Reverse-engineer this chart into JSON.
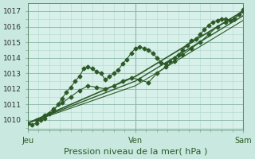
{
  "bg_color": "#c8e8e0",
  "plot_bg": "#d8f0ea",
  "grid_color": "#b0d8cc",
  "line_color": "#2d5a27",
  "title": "Pression niveau de la mer( hPa )",
  "xlabel_ticks": [
    "Jeu",
    "Ven",
    "Sam"
  ],
  "xlabel_tick_pos": [
    0.0,
    0.5,
    1.0
  ],
  "ylim": [
    1009.4,
    1017.5
  ],
  "yticks": [
    1010,
    1011,
    1012,
    1013,
    1014,
    1015,
    1016,
    1017
  ],
  "xlim": [
    0.0,
    1.0
  ],
  "vline_pos": [
    0.0,
    0.5,
    1.0
  ],
  "line1_x": [
    0.0,
    0.02,
    0.04,
    0.06,
    0.08,
    0.1,
    0.12,
    0.14,
    0.16,
    0.18,
    0.2,
    0.22,
    0.24,
    0.26,
    0.28,
    0.3,
    0.32,
    0.34,
    0.36,
    0.38,
    0.4,
    0.42,
    0.44,
    0.46,
    0.48,
    0.5,
    0.52,
    0.54,
    0.56,
    0.58,
    0.6,
    0.62,
    0.64,
    0.66,
    0.68,
    0.7,
    0.72,
    0.74,
    0.76,
    0.78,
    0.8,
    0.82,
    0.84,
    0.86,
    0.88,
    0.9,
    0.92,
    0.94,
    0.96,
    0.98,
    1.0
  ],
  "line1_y": [
    1009.8,
    1009.7,
    1009.8,
    1010.0,
    1010.1,
    1010.4,
    1010.6,
    1011.0,
    1011.4,
    1011.8,
    1012.1,
    1012.5,
    1012.8,
    1013.3,
    1013.4,
    1013.3,
    1013.1,
    1013.0,
    1012.6,
    1012.8,
    1013.0,
    1013.2,
    1013.6,
    1013.9,
    1014.3,
    1014.6,
    1014.7,
    1014.6,
    1014.5,
    1014.3,
    1014.0,
    1013.7,
    1013.6,
    1013.8,
    1014.0,
    1014.2,
    1014.5,
    1014.8,
    1015.1,
    1015.2,
    1015.5,
    1015.8,
    1016.1,
    1016.3,
    1016.4,
    1016.5,
    1016.5,
    1016.4,
    1016.5,
    1016.8,
    1017.1
  ],
  "line2_x": [
    0.0,
    0.04,
    0.08,
    0.12,
    0.16,
    0.2,
    0.24,
    0.28,
    0.32,
    0.36,
    0.4,
    0.44,
    0.48,
    0.52,
    0.56,
    0.6,
    0.64,
    0.68,
    0.72,
    0.76,
    0.8,
    0.84,
    0.88,
    0.92,
    0.96,
    1.0
  ],
  "line2_y": [
    1009.8,
    1010.0,
    1010.3,
    1010.7,
    1011.1,
    1011.5,
    1011.9,
    1012.2,
    1012.1,
    1012.0,
    1012.2,
    1012.5,
    1012.7,
    1012.6,
    1012.4,
    1013.0,
    1013.4,
    1013.8,
    1014.2,
    1014.6,
    1015.0,
    1015.5,
    1016.0,
    1016.3,
    1016.5,
    1017.0
  ],
  "line3_x": [
    0.0,
    0.5,
    1.0
  ],
  "line3_y": [
    1009.8,
    1012.8,
    1017.0
  ],
  "line4_x": [
    0.0,
    0.5,
    1.0
  ],
  "line4_y": [
    1009.8,
    1012.5,
    1016.7
  ],
  "line5_x": [
    0.0,
    0.5,
    1.0
  ],
  "line5_y": [
    1009.8,
    1012.2,
    1016.4
  ],
  "title_fontsize": 8,
  "tick_fontsize": 6.5,
  "label_fontsize": 7
}
